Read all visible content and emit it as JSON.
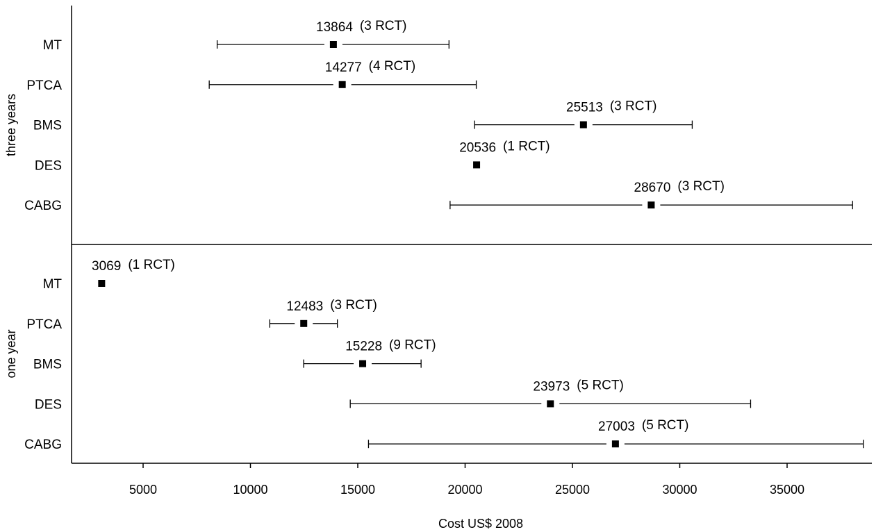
{
  "chart_data": {
    "type": "forest",
    "xlabel": "Cost US$ 2008",
    "xlim": [
      1500,
      39000
    ],
    "xticks": [
      5000,
      10000,
      15000,
      20000,
      25000,
      30000,
      35000
    ],
    "tick_labels": [
      "5000",
      "10000",
      "15000",
      "20000",
      "25000",
      "30000",
      "35000"
    ],
    "categories": [
      "MT",
      "PTCA",
      "BMS",
      "DES",
      "CABG"
    ],
    "panels": [
      {
        "name": "three years",
        "rows": [
          {
            "label": "MT",
            "value": 13864,
            "low": 8450,
            "high": 19250,
            "value_text": "13864",
            "rct_text": "(3 RCT)"
          },
          {
            "label": "PTCA",
            "value": 14277,
            "low": 8080,
            "high": 20520,
            "value_text": "14277",
            "rct_text": "(4 RCT)"
          },
          {
            "label": "BMS",
            "value": 25513,
            "low": 20440,
            "high": 30580,
            "value_text": "25513",
            "rct_text": "(3 RCT)"
          },
          {
            "label": "DES",
            "value": 20536,
            "low": null,
            "high": null,
            "value_text": "20536",
            "rct_text": "(1 RCT)"
          },
          {
            "label": "CABG",
            "value": 28670,
            "low": 19300,
            "high": 38050,
            "value_text": "28670",
            "rct_text": "(3 RCT)"
          }
        ]
      },
      {
        "name": "one year",
        "rows": [
          {
            "label": "MT",
            "value": 3069,
            "low": null,
            "high": null,
            "value_text": "3069",
            "rct_text": "(1 RCT)"
          },
          {
            "label": "PTCA",
            "value": 12483,
            "low": 10900,
            "high": 14050,
            "value_text": "12483",
            "rct_text": "(3 RCT)"
          },
          {
            "label": "BMS",
            "value": 15228,
            "low": 12480,
            "high": 17950,
            "value_text": "15228",
            "rct_text": "(9 RCT)"
          },
          {
            "label": "DES",
            "value": 23973,
            "low": 14650,
            "high": 33300,
            "value_text": "23973",
            "rct_text": "(5 RCT)"
          },
          {
            "label": "CABG",
            "value": 27003,
            "low": 15500,
            "high": 38550,
            "value_text": "27003",
            "rct_text": "(5 RCT)"
          }
        ]
      }
    ]
  }
}
